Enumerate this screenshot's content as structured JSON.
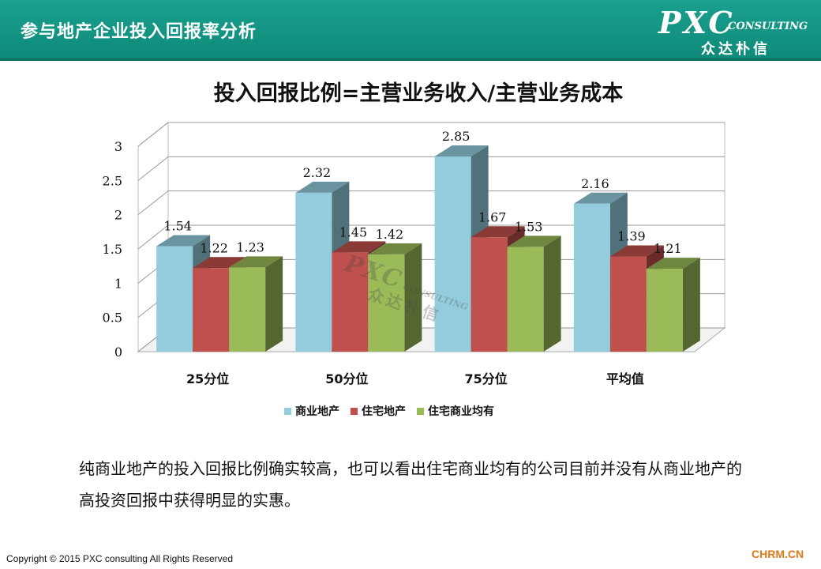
{
  "header": {
    "title": "参与地产企业投入回报率分析",
    "logo_main": "PXC",
    "logo_sub": "CONSULTING",
    "logo_cn": "众达朴信"
  },
  "chart_data": {
    "type": "bar",
    "title": "投入回报比例=主营业务收入/主营业务成本",
    "categories": [
      "25分位",
      "50分位",
      "75分位",
      "平均值"
    ],
    "series": [
      {
        "name": "商业地产",
        "values": [
          1.54,
          2.32,
          2.85,
          2.16
        ],
        "color": "#93cddd"
      },
      {
        "name": "住宅地产",
        "values": [
          1.22,
          1.45,
          1.67,
          1.39
        ],
        "color": "#c0504d"
      },
      {
        "name": "住宅商业均有",
        "values": [
          1.23,
          1.42,
          1.53,
          1.21
        ],
        "color": "#9bbb59"
      }
    ],
    "value_labels": [
      [
        "1.54",
        "2.32",
        "2.85",
        "2.16"
      ],
      [
        "1.22",
        "1.45",
        "1.67",
        "1.39"
      ],
      [
        "1.23",
        "1.42",
        "1.53",
        "1.21"
      ]
    ],
    "yticks": [
      "0",
      "0.5",
      "1",
      "1.5",
      "2",
      "2.5",
      "3"
    ],
    "ylim": [
      0,
      3
    ],
    "grid": true,
    "legend_position": "bottom",
    "style": "3d-clustered-column",
    "xlabel": "",
    "ylabel": ""
  },
  "watermark": {
    "main": "PXC",
    "sub": "CONSULTING",
    "cn": "众达朴信"
  },
  "body_text": "纯商业地产的投入回报比例确实较高，也可以看出住宅商业均有的公司目前并没有从商业地产的高投资回报中获得明显的实惠。",
  "footer": {
    "copyright": "Copyright © 2015  PXC consulting All Rights Reserved",
    "site": "CHRM.CN"
  }
}
